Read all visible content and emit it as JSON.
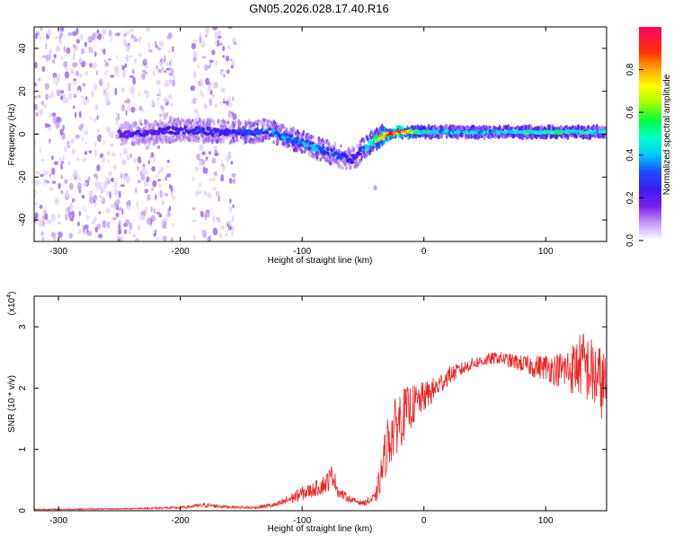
{
  "page": {
    "title": "GN05.2026.028.17.40.R16"
  },
  "colors": {
    "background": "#ffffff",
    "axis": "#000000",
    "snr_line": "#ee2222",
    "spectrogram_cmap": [
      "#ffffff",
      "#e6d6fb",
      "#c9a7f4",
      "#a06cf0",
      "#6e22ee",
      "#3f1cf0",
      "#1a4bff",
      "#00c8ff",
      "#00ffd0",
      "#00ff40",
      "#aaff00",
      "#ffff00",
      "#ff8800",
      "#ff0000",
      "#ff0066"
    ]
  },
  "chart_data": [
    {
      "type": "heatmap",
      "name": "spectrogram",
      "xlabel": "Height of straight line (km)",
      "ylabel": "Frequency (Hz)",
      "xlim": [
        -320,
        150
      ],
      "ylim": [
        -50,
        50
      ],
      "xticks": [
        -300,
        -200,
        -100,
        0,
        100
      ],
      "xtick_labels": [
        "-300",
        "-200",
        "-100",
        "0",
        "100"
      ],
      "yticks": [
        -40,
        -20,
        0,
        20,
        40
      ],
      "ytick_labels": [
        "-40",
        "-20",
        "0",
        "20",
        "40"
      ],
      "colorbar": {
        "label": "Normalized spectral amplitude",
        "range": [
          0,
          1
        ],
        "ticks": [
          0.0,
          0.2,
          0.4,
          0.6,
          0.8
        ],
        "tick_labels": [
          "0.0",
          "0.2",
          "0.4",
          "0.6",
          "0.8"
        ]
      },
      "ridge": {
        "height_km": [
          -250,
          -200,
          -160,
          -140,
          -130,
          -120,
          -110,
          -100,
          -90,
          -80,
          -70,
          -60,
          -55,
          -50,
          -45,
          -40,
          -35,
          -30,
          -20,
          -10,
          0,
          20,
          50,
          100,
          150
        ],
        "frequency_hz": [
          0,
          2,
          1,
          1,
          2,
          0,
          -2,
          -4,
          -6,
          -8,
          -10,
          -12,
          -10,
          -7,
          -5,
          -2,
          -1,
          0,
          1,
          1,
          1,
          1,
          1,
          1,
          1
        ],
        "amplitude": [
          0.3,
          0.35,
          0.38,
          0.4,
          0.42,
          0.42,
          0.43,
          0.44,
          0.45,
          0.42,
          0.4,
          0.36,
          0.34,
          0.42,
          0.5,
          0.62,
          0.75,
          0.86,
          0.92,
          0.7,
          0.55,
          0.5,
          0.5,
          0.58,
          0.52
        ]
      },
      "noise_bands_km": [
        [
          -320,
          -205
        ],
        [
          -190,
          -155
        ]
      ],
      "isolated_feature": {
        "height_km": -40,
        "frequency_hz": -25
      }
    },
    {
      "type": "line",
      "name": "snr",
      "xlabel": "Height of straight line (km)",
      "ylabel": "SNR (10 * v/v)",
      "y_multiplier": "(x10",
      "y_multiplier_exp": "4",
      "y_multiplier_close": ")",
      "xlim": [
        -320,
        150
      ],
      "ylim": [
        0,
        3.5
      ],
      "xticks": [
        -300,
        -200,
        -100,
        0,
        100
      ],
      "xtick_labels": [
        "-300",
        "-200",
        "-100",
        "0",
        "100"
      ],
      "yticks": [
        0,
        1,
        2,
        3
      ],
      "ytick_labels": [
        "0",
        "1",
        "2",
        "3"
      ],
      "series": [
        {
          "name": "SNR",
          "x": [
            -320,
            -250,
            -200,
            -180,
            -160,
            -140,
            -120,
            -100,
            -90,
            -80,
            -75,
            -70,
            -60,
            -50,
            -40,
            -35,
            -30,
            -20,
            -10,
            0,
            10,
            20,
            30,
            40,
            50,
            60,
            70,
            80,
            90,
            100,
            110,
            120,
            130,
            140,
            150
          ],
          "y": [
            0.02,
            0.03,
            0.05,
            0.09,
            0.06,
            0.05,
            0.1,
            0.28,
            0.35,
            0.45,
            0.6,
            0.3,
            0.18,
            0.12,
            0.2,
            0.6,
            1.1,
            1.5,
            1.7,
            1.85,
            2.0,
            2.2,
            2.3,
            2.4,
            2.45,
            2.5,
            2.45,
            2.4,
            2.35,
            2.35,
            2.3,
            2.3,
            2.4,
            2.2,
            2.0
          ],
          "noise_amplitude": [
            0.01,
            0.01,
            0.02,
            0.04,
            0.02,
            0.02,
            0.05,
            0.12,
            0.12,
            0.18,
            0.18,
            0.1,
            0.05,
            0.04,
            0.1,
            0.3,
            0.45,
            0.5,
            0.35,
            0.25,
            0.2,
            0.15,
            0.12,
            0.1,
            0.1,
            0.1,
            0.12,
            0.14,
            0.18,
            0.22,
            0.28,
            0.4,
            0.55,
            0.6,
            0.6
          ]
        }
      ]
    }
  ]
}
